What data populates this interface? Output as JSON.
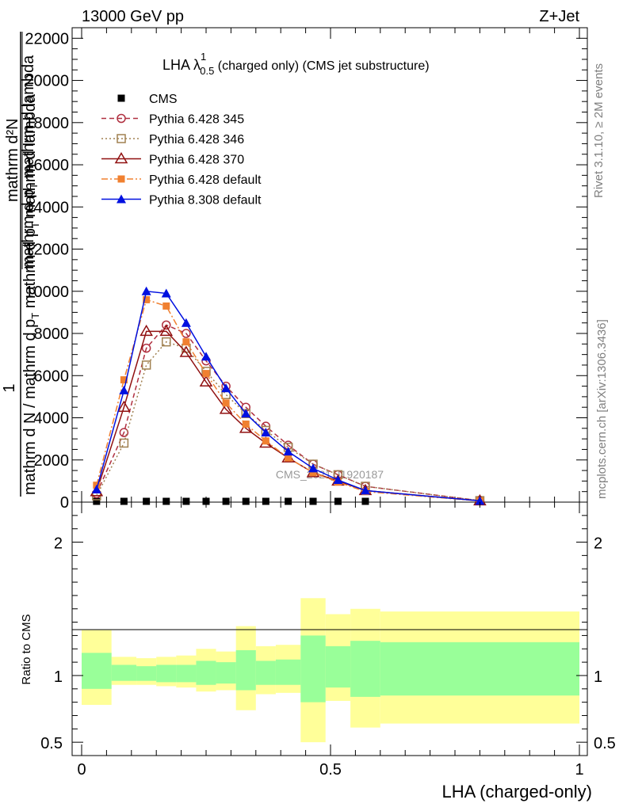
{
  "header": {
    "left": "13000 GeV pp",
    "right": "Z+Jet"
  },
  "title": {
    "main": "LHA λ",
    "sup": "1",
    "sub": "0.5",
    "rest": " (charged only) (CMS jet substructure)"
  },
  "ylabel": {
    "one": "1",
    "dN_top": "mathrm d²N",
    "dN_bottom": "mathrm d p",
    "dN_bottom_sub": "T",
    "dN_bottom_rest": " mathrm d lambda",
    "denominator": "mathrm d N / mathrm d p",
    "denominator_sub": "T",
    "denominator_rest": " mathrm d p",
    "denominator_sub2": "T",
    "denominator_rest2": " mathrm d lambda"
  },
  "right_labels": {
    "rivet": "Rivet 3.1.10, ≥ 2M events",
    "mcplots": "mcplots.cern.ch [arXiv:1306.3436]"
  },
  "watermark": "CMS_2021_I1920187",
  "ratio_ylabel": "Ratio to CMS",
  "xlabel": "LHA (charged-only)",
  "colors": {
    "p345": "#b03040",
    "p346": "#a08050",
    "p370": "#901010",
    "p6def": "#f08030",
    "p8def": "#0010e0",
    "band_inner": "#99ff99",
    "band_outer": "#ffff99"
  },
  "chart_data": [
    {
      "type": "line",
      "panel": "main",
      "ylim": [
        0,
        22500
      ],
      "xlim": [
        -0.02,
        1.0
      ],
      "yticks": [
        0,
        2000,
        4000,
        6000,
        8000,
        10000,
        12000,
        14000,
        16000,
        18000,
        20000,
        22000
      ],
      "yticklabels": [
        "0",
        "2000",
        "4000",
        "6000",
        "8000",
        "10000",
        "12000",
        "14000",
        "16000",
        "18000",
        "20000",
        "22000"
      ],
      "x": [
        0.03,
        0.085,
        0.13,
        0.17,
        0.21,
        0.25,
        0.29,
        0.33,
        0.37,
        0.415,
        0.465,
        0.515,
        0.57,
        0.8
      ],
      "series": [
        {
          "name": "CMS",
          "values": [
            0,
            0,
            0,
            0,
            0,
            0,
            0,
            0,
            0,
            0,
            0,
            0,
            0,
            0
          ]
        },
        {
          "name": "Pythia 6.428 345",
          "values": [
            400,
            3300,
            7300,
            8400,
            8000,
            6700,
            5500,
            4500,
            3600,
            2700,
            1800,
            1300,
            750,
            70
          ]
        },
        {
          "name": "Pythia 6.428 346",
          "values": [
            300,
            2800,
            6500,
            7600,
            7300,
            6200,
            5100,
            4200,
            3400,
            2600,
            1800,
            1300,
            750,
            70
          ]
        },
        {
          "name": "Pythia 6.428 370",
          "values": [
            500,
            4500,
            8100,
            8100,
            7100,
            5700,
            4400,
            3500,
            2800,
            2100,
            1400,
            1000,
            550,
            60
          ]
        },
        {
          "name": "Pythia 6.428 default",
          "values": [
            800,
            5800,
            9600,
            9300,
            7600,
            6100,
            4700,
            3700,
            2900,
            2100,
            1400,
            950,
            500,
            55
          ]
        },
        {
          "name": "Pythia 8.308 default",
          "values": [
            600,
            5300,
            10000,
            9900,
            8500,
            6900,
            5400,
            4200,
            3300,
            2400,
            1600,
            1050,
            550,
            60
          ]
        }
      ]
    },
    {
      "type": "area",
      "panel": "ratio",
      "ylim": [
        0.4,
        2.3
      ],
      "yticks": [
        0.5,
        1,
        2
      ],
      "yticklabels": [
        "0.5",
        "1",
        "2"
      ],
      "xticks": [
        0,
        0.5,
        1
      ],
      "xticklabels": [
        "0",
        "0.5",
        "1"
      ],
      "bin_edges": [
        0.0,
        0.06,
        0.11,
        0.15,
        0.19,
        0.23,
        0.27,
        0.31,
        0.35,
        0.39,
        0.44,
        0.49,
        0.54,
        0.6,
        1.0
      ],
      "inner_band": {
        "low": [
          0.9,
          0.96,
          0.96,
          0.95,
          0.95,
          0.93,
          0.94,
          0.89,
          0.93,
          0.93,
          0.8,
          0.91,
          0.84,
          0.85
        ],
        "high": [
          1.17,
          1.08,
          1.07,
          1.08,
          1.08,
          1.11,
          1.1,
          1.19,
          1.11,
          1.12,
          1.3,
          1.22,
          1.26,
          1.25
        ]
      },
      "outer_band": {
        "low": [
          0.78,
          0.93,
          0.93,
          0.92,
          0.91,
          0.88,
          0.89,
          0.74,
          0.86,
          0.87,
          0.5,
          0.81,
          0.61,
          0.64
        ],
        "high": [
          1.34,
          1.14,
          1.13,
          1.14,
          1.15,
          1.2,
          1.18,
          1.37,
          1.22,
          1.23,
          1.58,
          1.46,
          1.5,
          1.48
        ]
      }
    }
  ]
}
